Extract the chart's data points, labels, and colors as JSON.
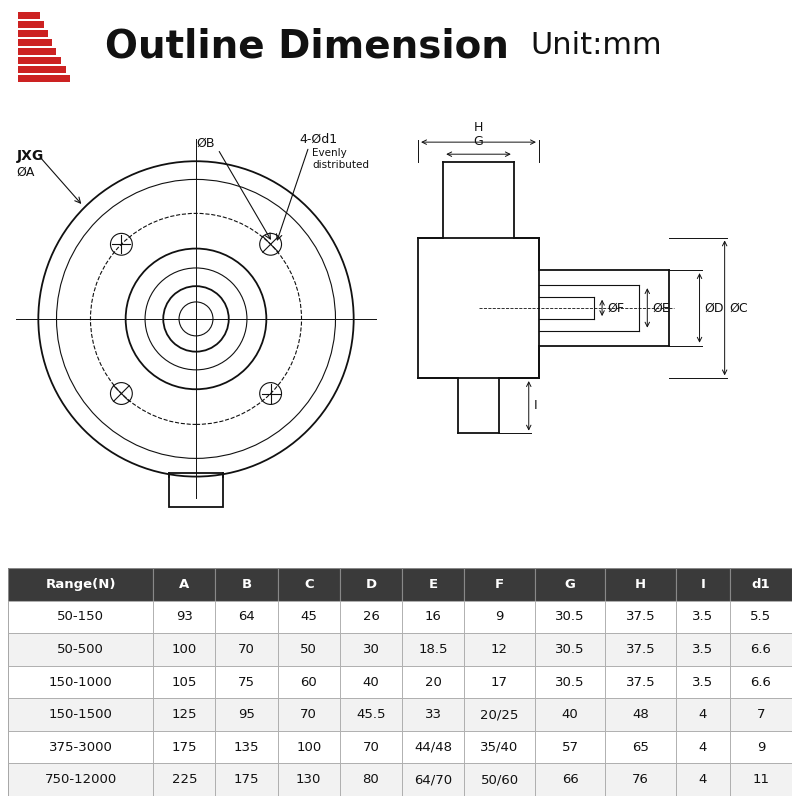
{
  "title_bold": "Outline Dimension",
  "title_light": "Unit:mm",
  "bg_color": "#ffffff",
  "table_header_bg": "#3a3a3a",
  "table_header_fg": "#ffffff",
  "table_row_bg1": "#ffffff",
  "table_row_bg2": "#f2f2f2",
  "table_border": "#888888",
  "diagram_color": "#111111",
  "table_columns": [
    "Range(N)",
    "A",
    "B",
    "C",
    "D",
    "E",
    "F",
    "G",
    "H",
    "I",
    "d1"
  ],
  "table_data": [
    [
      "50-150",
      "93",
      "64",
      "45",
      "26",
      "16",
      "9",
      "30.5",
      "37.5",
      "3.5",
      "5.5"
    ],
    [
      "50-500",
      "100",
      "70",
      "50",
      "30",
      "18.5",
      "12",
      "30.5",
      "37.5",
      "3.5",
      "6.6"
    ],
    [
      "150-1000",
      "105",
      "75",
      "60",
      "40",
      "20",
      "17",
      "30.5",
      "37.5",
      "3.5",
      "6.6"
    ],
    [
      "150-1500",
      "125",
      "95",
      "70",
      "45.5",
      "33",
      "20/25",
      "40",
      "48",
      "4",
      "7"
    ],
    [
      "375-3000",
      "175",
      "135",
      "100",
      "70",
      "44/48",
      "35/40",
      "57",
      "65",
      "4",
      "9"
    ],
    [
      "750-12000",
      "225",
      "175",
      "130",
      "80",
      "64/70",
      "50/60",
      "66",
      "76",
      "4",
      "11"
    ]
  ],
  "logo_color": "#cc2222",
  "col_widths": [
    1.75,
    0.75,
    0.75,
    0.75,
    0.75,
    0.75,
    0.85,
    0.85,
    0.85,
    0.65,
    0.75
  ]
}
